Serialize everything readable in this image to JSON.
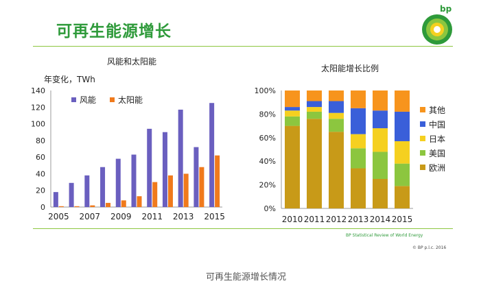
{
  "header": {
    "title": "可再生能源增长",
    "brand_text": "bp",
    "brand_color": "#2e9a3a"
  },
  "footer": {
    "source": "BP Statistical Review of World Energy",
    "copyright": "© BP p.l.c. 2016",
    "caption": "可再生能源增长情况"
  },
  "chart_data": [
    {
      "type": "bar",
      "title": "风能和太阳能",
      "ylabel": "年变化，TWh",
      "xlabel": "",
      "ylim": [
        0,
        140
      ],
      "yticks": [
        0,
        20,
        40,
        60,
        80,
        100,
        120,
        140
      ],
      "categories": [
        "2005",
        "2006",
        "2007",
        "2008",
        "2009",
        "2010",
        "2011",
        "2012",
        "2013",
        "2014",
        "2015"
      ],
      "x_tick_labels": [
        "2005",
        "2007",
        "2009",
        "2011",
        "2013",
        "2015"
      ],
      "legend_position": "top-left",
      "series": [
        {
          "name": "风能",
          "color": "#6a5fbf",
          "values": [
            18,
            29,
            38,
            48,
            58,
            63,
            94,
            90,
            117,
            72,
            125
          ]
        },
        {
          "name": "太阳能",
          "color": "#f07a1c",
          "values": [
            1,
            1,
            2,
            5,
            8,
            13,
            30,
            38,
            40,
            48,
            62
          ]
        }
      ]
    },
    {
      "type": "bar",
      "stacked": true,
      "title": "太阳能增长比例",
      "ylim": [
        0,
        100
      ],
      "yticks": [
        "0%",
        "20%",
        "40%",
        "60%",
        "80%",
        "100%"
      ],
      "categories": [
        "2010",
        "2011",
        "2012",
        "2013",
        "2014",
        "2015"
      ],
      "legend_position": "right",
      "series": [
        {
          "name": "欧洲",
          "color": "#c89a18",
          "values": [
            70,
            76,
            65,
            34,
            25,
            19
          ]
        },
        {
          "name": "美国",
          "color": "#8cc63f",
          "values": [
            8,
            6,
            11,
            17,
            23,
            19
          ]
        },
        {
          "name": "日本",
          "color": "#f5d020",
          "values": [
            5,
            4,
            5,
            12,
            20,
            19
          ]
        },
        {
          "name": "中国",
          "color": "#3a5fd9",
          "values": [
            3,
            5,
            10,
            22,
            15,
            25
          ]
        },
        {
          "name": "其他",
          "color": "#f7941d",
          "values": [
            14,
            9,
            9,
            15,
            17,
            18
          ]
        }
      ]
    }
  ]
}
